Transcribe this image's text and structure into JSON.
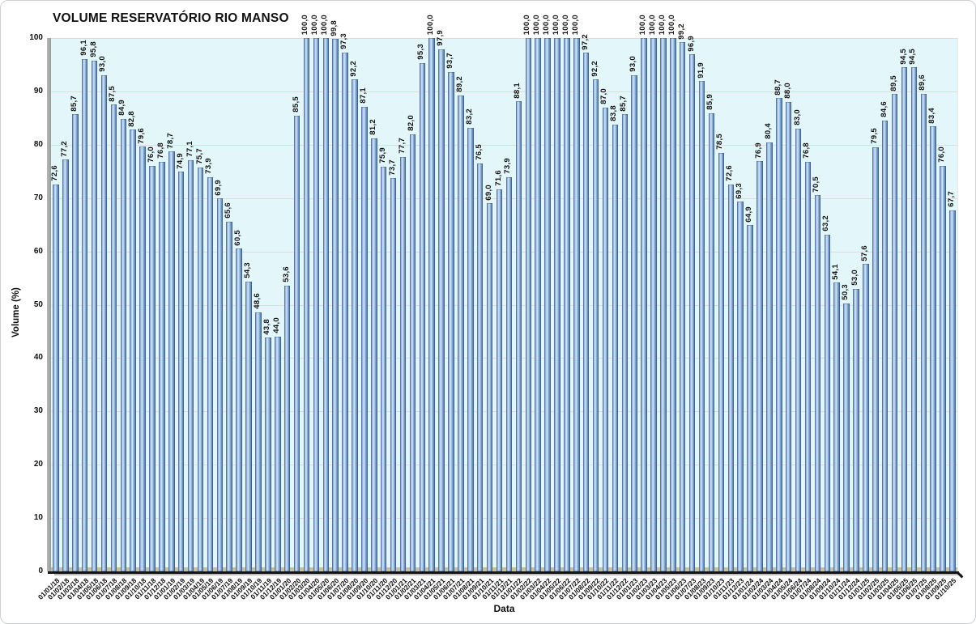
{
  "window": {
    "background": "#ffffff",
    "frame_border": "#cdd0d3"
  },
  "chart_data": {
    "type": "bar",
    "title": "VOLUME RESERVATÓRIO RIO MANSO",
    "xlabel": "Data",
    "ylabel": "Volume (%)",
    "ylim": [
      0,
      100
    ],
    "y_ticks": [
      0,
      10,
      20,
      30,
      40,
      50,
      60,
      70,
      80,
      90,
      100
    ],
    "grid": "horizontal",
    "legend": "none",
    "bar_color": "#6f99cc",
    "plot_bg": "#e3f7fa",
    "gridline_color": "#e4d8d8",
    "floor_color": "#cac19b",
    "categories": [
      "01/01/18",
      "01/02/18",
      "01/03/18",
      "01/04/18",
      "01/05/18",
      "01/06/18",
      "01/07/18",
      "01/08/18",
      "01/09/18",
      "01/10/18",
      "01/11/18",
      "01/12/18",
      "01/01/19",
      "01/02/19",
      "01/03/19",
      "01/04/19",
      "01/05/19",
      "01/06/19",
      "01/07/19",
      "01/08/19",
      "01/09/19",
      "01/10/19",
      "01/11/19",
      "01/12/19",
      "01/01/20",
      "01/02/20",
      "01/03/20",
      "01/04/20",
      "01/05/20",
      "01/06/20",
      "01/07/20",
      "01/08/20",
      "01/09/20",
      "01/10/20",
      "01/11/20",
      "01/12/20",
      "01/01/21",
      "01/02/21",
      "01/03/21",
      "01/04/21",
      "01/05/21",
      "01/06/21",
      "01/07/21",
      "01/08/21",
      "01/09/21",
      "01/10/21",
      "01/11/21",
      "01/12/21",
      "01/01/22",
      "01/02/22",
      "01/03/22",
      "01/04/22",
      "01/05/22",
      "01/06/22",
      "01/07/22",
      "01/08/22",
      "01/09/22",
      "01/10/22",
      "01/11/22",
      "01/12/22",
      "01/01/23",
      "01/02/23",
      "01/03/23",
      "01/04/23",
      "01/05/23",
      "01/06/23",
      "01/07/23",
      "01/08/23",
      "01/09/23",
      "01/10/23",
      "01/11/23",
      "01/12/23",
      "01/01/24",
      "01/02/24",
      "01/03/24",
      "01/04/24",
      "01/05/24",
      "01/06/24",
      "01/07/24",
      "01/08/24",
      "01/09/24",
      "01/10/24",
      "01/11/24",
      "01/12/24",
      "01/01/25",
      "01/02/25",
      "01/03/25",
      "01/04/25",
      "01/05/25",
      "01/06/25",
      "01/07/25",
      "01/08/25",
      "01/09/25",
      "01/10/25"
    ],
    "values": [
      72.6,
      77.2,
      85.7,
      96.1,
      95.8,
      93.0,
      87.5,
      84.9,
      82.8,
      79.6,
      76.0,
      76.8,
      78.7,
      74.9,
      77.1,
      75.7,
      73.9,
      69.9,
      65.6,
      60.5,
      54.3,
      48.6,
      43.8,
      44.0,
      53.6,
      85.5,
      100.0,
      100.0,
      100.0,
      99.8,
      97.3,
      92.2,
      87.1,
      81.2,
      75.9,
      73.7,
      77.7,
      82.0,
      95.3,
      100.0,
      97.9,
      93.7,
      89.2,
      83.2,
      76.5,
      69.0,
      71.6,
      73.9,
      88.1,
      100.0,
      100.0,
      100.0,
      100.0,
      100.0,
      100.0,
      97.2,
      92.2,
      87.0,
      83.8,
      85.7,
      93.0,
      100.0,
      100.0,
      100.0,
      100.0,
      99.2,
      96.9,
      91.9,
      85.9,
      78.5,
      72.6,
      69.3,
      64.9,
      76.9,
      80.4,
      88.7,
      88.0,
      83.0,
      76.8,
      70.5,
      63.2,
      54.1,
      50.3,
      53.0,
      57.6,
      79.5,
      84.6,
      89.5,
      94.5,
      94.5,
      89.6,
      83.4,
      76.0,
      67.7
    ],
    "value_labels": [
      "72,6",
      "77,2",
      "85,7",
      "96,1",
      "95,8",
      "93,0",
      "87,5",
      "84,9",
      "82,8",
      "79,6",
      "76,0",
      "76,8",
      "78,7",
      "74,9",
      "77,1",
      "75,7",
      "73,9",
      "69,9",
      "65,6",
      "60,5",
      "54,3",
      "48,6",
      "43,8",
      "44,0",
      "53,6",
      "85,5",
      "100,0",
      "100,0",
      "100,0",
      "99,8",
      "97,3",
      "92,2",
      "87,1",
      "81,2",
      "75,9",
      "73,7",
      "77,7",
      "82,0",
      "95,3",
      "100,0",
      "97,9",
      "93,7",
      "89,2",
      "83,2",
      "76,5",
      "69,0",
      "71,6",
      "73,9",
      "88,1",
      "100,0",
      "100,0",
      "100,0",
      "100,0",
      "100,0",
      "100,0",
      "97,2",
      "92,2",
      "87,0",
      "83,8",
      "85,7",
      "93,0",
      "100,0",
      "100,0",
      "100,0",
      "100,0",
      "99,2",
      "96,9",
      "91,9",
      "85,9",
      "78,5",
      "72,6",
      "69,3",
      "64,9",
      "76,9",
      "80,4",
      "88,7",
      "88,0",
      "83,0",
      "76,8",
      "70,5",
      "63,2",
      "54,1",
      "50,3",
      "53,0",
      "57,6",
      "79,5",
      "84,6",
      "89,5",
      "94,5",
      "94,5",
      "89,6",
      "83,4",
      "76,0",
      "67,7"
    ]
  }
}
